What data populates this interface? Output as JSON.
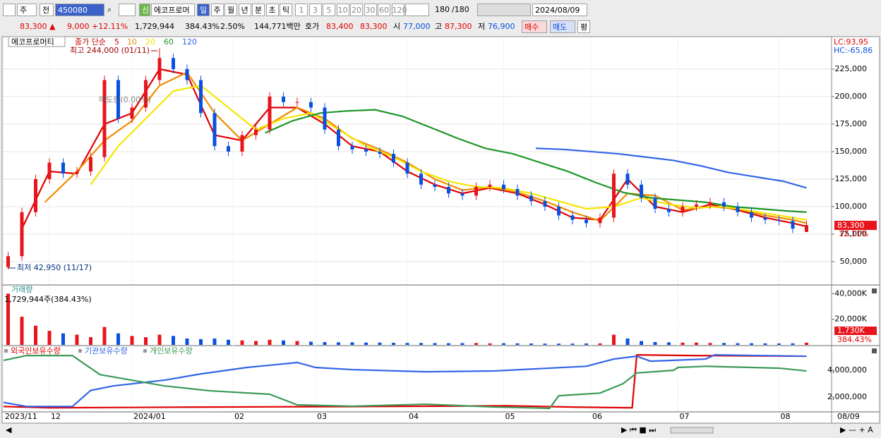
{
  "toolbar": {
    "market": "주",
    "scope": "전",
    "code": "450080",
    "badge": "신",
    "name": "에코프로머",
    "intervals": [
      "일",
      "주",
      "월",
      "년",
      "분",
      "초",
      "틱"
    ],
    "minutes": [
      "1",
      "3",
      "5",
      "10",
      "20",
      "30",
      "60",
      "120"
    ],
    "count": "180",
    "total": "/180",
    "date": "2024/08/09"
  },
  "quote": {
    "price": "83,300 ▲",
    "change": "9,000",
    "rate": "+12.11%",
    "volume": "1,729,944",
    "volume_rate": "384.43%",
    "turnover": "2.50%",
    "amount": "144,771백만",
    "ask_label": "호가",
    "ask": "83,400",
    "bid": "83,300",
    "open_label": "시",
    "open": "77,000",
    "high_label": "고",
    "high": "87,300",
    "low_label": "저",
    "low": "76,900",
    "buy": "매수",
    "sell": "매도",
    "avg": "평"
  },
  "chart_data": [
    {
      "type": "candlestick",
      "title": "에코프로머티",
      "indicator": "종가 단순",
      "up_color": "#e8141c",
      "down_color": "#0a50e0",
      "grid": true,
      "annotations": {
        "high": "최고 244,000 (01/11)",
        "low": "최저 42,950 (11/17)",
        "overlay": "매도량(0.00%)",
        "lc": "LC:93,95",
        "hc": "HC:-65,86",
        "last_rate": "12.11%"
      },
      "last_price_label": "83,300",
      "xlim": [
        0,
        180
      ],
      "ylim": [
        29500,
        252500
      ],
      "yticks": [
        {
          "value": 50000,
          "label": "50,000"
        },
        {
          "value": 75000,
          "label": "75,000"
        },
        {
          "value": 100000,
          "label": "100,000"
        },
        {
          "value": 125000,
          "label": "125,000"
        },
        {
          "value": 150000,
          "label": "150,000"
        },
        {
          "value": 175000,
          "label": "175,000"
        },
        {
          "value": 200000,
          "label": "200,000"
        },
        {
          "value": 225000,
          "label": "225,000"
        }
      ],
      "x": [
        1,
        4,
        7,
        10,
        13,
        16,
        19,
        22,
        25,
        28,
        31,
        34,
        37,
        40,
        43,
        46,
        49,
        52,
        55,
        58,
        61,
        64,
        67,
        70,
        73,
        76,
        79,
        82,
        85,
        88,
        91,
        94,
        97,
        100,
        103,
        106,
        109,
        112,
        115,
        118,
        121,
        124,
        127,
        130,
        133,
        136,
        139,
        142,
        145,
        148,
        151,
        154,
        157,
        160,
        163,
        166,
        169,
        172,
        175
      ],
      "open": [
        45000,
        55000,
        95000,
        125000,
        140000,
        130000,
        132000,
        145000,
        215000,
        180000,
        190000,
        215000,
        235000,
        225000,
        215000,
        185000,
        155000,
        150000,
        165000,
        170000,
        200000,
        195000,
        195000,
        190000,
        170000,
        155000,
        152000,
        150000,
        148000,
        140000,
        130000,
        120000,
        118000,
        112000,
        110000,
        118000,
        120000,
        116000,
        110000,
        105000,
        100000,
        92000,
        88000,
        85000,
        90000,
        130000,
        120000,
        108000,
        98000,
        95000,
        100000,
        102000,
        104000,
        100000,
        95000,
        90000,
        88000,
        87000,
        77000
      ],
      "high": [
        59000,
        99000,
        129000,
        144000,
        144000,
        136000,
        149000,
        219000,
        219000,
        194000,
        219000,
        244000,
        239000,
        229000,
        219000,
        189000,
        159000,
        169000,
        174000,
        204000,
        204000,
        199000,
        199000,
        194000,
        174000,
        159000,
        156000,
        154000,
        152000,
        144000,
        134000,
        124000,
        122000,
        116000,
        122000,
        124000,
        124000,
        120000,
        114000,
        109000,
        104000,
        96000,
        92000,
        94000,
        134000,
        134000,
        124000,
        112000,
        102000,
        104000,
        106000,
        108000,
        108000,
        104000,
        99000,
        94000,
        92000,
        91000,
        87300
      ],
      "low": [
        42950,
        51000,
        91000,
        121000,
        126000,
        126000,
        128000,
        141000,
        176000,
        176000,
        186000,
        211000,
        221000,
        211000,
        181000,
        151000,
        146000,
        146000,
        161000,
        166000,
        191000,
        191000,
        186000,
        166000,
        151000,
        148000,
        146000,
        144000,
        136000,
        126000,
        116000,
        114000,
        108000,
        106000,
        106000,
        114000,
        112000,
        106000,
        101000,
        96000,
        88000,
        84000,
        81000,
        81000,
        86000,
        116000,
        104000,
        94000,
        91000,
        91000,
        96000,
        98000,
        96000,
        91000,
        86000,
        84000,
        83000,
        76000,
        76900
      ],
      "close": [
        55000,
        95000,
        125000,
        140000,
        130000,
        132000,
        145000,
        215000,
        180000,
        190000,
        215000,
        235000,
        225000,
        215000,
        185000,
        155000,
        150000,
        165000,
        170000,
        200000,
        195000,
        195000,
        190000,
        170000,
        155000,
        152000,
        150000,
        148000,
        140000,
        130000,
        120000,
        118000,
        112000,
        110000,
        118000,
        120000,
        116000,
        110000,
        105000,
        100000,
        92000,
        88000,
        85000,
        90000,
        130000,
        120000,
        108000,
        98000,
        95000,
        100000,
        102000,
        104000,
        100000,
        95000,
        90000,
        88000,
        87000,
        80000,
        83300
      ],
      "series": [
        {
          "name": "5",
          "color": "#e00000",
          "x": [
            4,
            10,
            16,
            22,
            28,
            34,
            40,
            46,
            52,
            58,
            64,
            70,
            76,
            82,
            88,
            94,
            100,
            106,
            112,
            118,
            124,
            130,
            136,
            142,
            148,
            154,
            160,
            166,
            172,
            175
          ],
          "values": [
            80000,
            132000,
            130000,
            175000,
            185000,
            225000,
            220000,
            165000,
            160000,
            190000,
            190000,
            175000,
            155000,
            150000,
            132000,
            120000,
            112000,
            117000,
            112000,
            102000,
            90000,
            88000,
            125000,
            100000,
            95000,
            102000,
            97000,
            90000,
            85000,
            82000
          ]
        },
        {
          "name": "10",
          "color": "#f08c00",
          "x": [
            9,
            16,
            22,
            28,
            34,
            40,
            46,
            52,
            58,
            64,
            70,
            76,
            82,
            88,
            94,
            100,
            106,
            112,
            118,
            124,
            130,
            136,
            142,
            148,
            154,
            160,
            166,
            172,
            175
          ],
          "values": [
            104000,
            132000,
            160000,
            178000,
            210000,
            222000,
            185000,
            160000,
            175000,
            190000,
            180000,
            162000,
            152000,
            140000,
            125000,
            115000,
            118000,
            113000,
            105000,
            95000,
            87000,
            112000,
            110000,
            97000,
            100000,
            98000,
            92000,
            88000,
            85000
          ]
        },
        {
          "name": "20",
          "color": "#f5e600",
          "x": [
            19,
            25,
            31,
            37,
            43,
            49,
            55,
            61,
            67,
            73,
            79,
            85,
            91,
            97,
            103,
            109,
            115,
            121,
            127,
            133,
            139,
            145,
            151,
            157,
            163,
            169,
            175
          ],
          "values": [
            120000,
            155000,
            180000,
            205000,
            210000,
            190000,
            170000,
            180000,
            185000,
            170000,
            155000,
            145000,
            132000,
            123000,
            118000,
            117000,
            112000,
            105000,
            98000,
            100000,
            108000,
            102000,
            99000,
            100000,
            96000,
            92000,
            88000
          ]
        },
        {
          "name": "60",
          "color": "#1e9628",
          "x": [
            57,
            63,
            69,
            75,
            81,
            87,
            93,
            99,
            105,
            111,
            117,
            123,
            129,
            135,
            141,
            147,
            153,
            159,
            165,
            171,
            175
          ],
          "values": [
            167000,
            178000,
            185000,
            187000,
            188000,
            182000,
            172000,
            162000,
            153000,
            148000,
            140000,
            132000,
            122000,
            113000,
            108000,
            106000,
            104000,
            100000,
            98000,
            96000,
            95000
          ]
        },
        {
          "name": "120",
          "color": "#3264e6",
          "x": [
            116,
            122,
            128,
            134,
            140,
            146,
            152,
            158,
            164,
            170,
            175
          ],
          "values": [
            153000,
            152000,
            150000,
            148000,
            145000,
            142000,
            137000,
            131000,
            127000,
            123000,
            117000
          ]
        }
      ]
    },
    {
      "type": "bar",
      "title": "거래량",
      "subtitle": "1,729,944주(384.43%)",
      "last_label": "1,730K",
      "last_rate": "384.43%",
      "ylim": [
        0,
        46300
      ],
      "yticks": [
        {
          "value": 20000,
          "label": "20,000K"
        },
        {
          "value": 40000,
          "label": "40,000K"
        }
      ],
      "values": [
        40000,
        22000,
        15000,
        11000,
        9000,
        8000,
        6000,
        14000,
        9000,
        7000,
        6000,
        8000,
        7000,
        5000,
        4500,
        5000,
        4000,
        3500,
        3000,
        4000,
        3500,
        3000,
        2500,
        2200,
        2000,
        2000,
        1800,
        1800,
        1600,
        1500,
        1500,
        1400,
        1300,
        1400,
        1500,
        1200,
        1300,
        1200,
        1100,
        1000,
        1000,
        1000,
        1100,
        1200,
        8000,
        5000,
        3000,
        2200,
        2000,
        1800,
        1800,
        1500,
        1500,
        1300,
        1300,
        1200,
        1100,
        1200,
        1730
      ]
    },
    {
      "type": "line",
      "grid": true,
      "xlim": [
        0,
        180
      ],
      "ylim": [
        947000,
        5790000
      ],
      "yticks": [
        {
          "value": 2000000,
          "label": "2,000,000"
        },
        {
          "value": 4000000,
          "label": "4,000,000"
        }
      ],
      "xticks": [
        {
          "value": 0,
          "label": "2023/11"
        },
        {
          "value": 10,
          "label": "12"
        },
        {
          "value": 28,
          "label": "2024/01"
        },
        {
          "value": 50,
          "label": "02"
        },
        {
          "value": 68,
          "label": "03"
        },
        {
          "value": 88,
          "label": "04"
        },
        {
          "value": 109,
          "label": "05"
        },
        {
          "value": 128,
          "label": "06"
        },
        {
          "value": 147,
          "label": "07"
        },
        {
          "value": 169,
          "label": "08"
        }
      ],
      "x_end_label": "08/09",
      "series": [
        {
          "name": "외국인보유수량",
          "color": "#e00000",
          "x": [
            0,
            10,
            40,
            80,
            110,
            125,
            137,
            138,
            150,
            175
          ],
          "values": [
            1300000,
            1200000,
            1250000,
            1300000,
            1350000,
            1250000,
            1200000,
            5150000,
            5100000,
            5050000
          ]
        },
        {
          "name": "기관보유수량",
          "color": "#3264e6",
          "x": [
            0,
            5,
            15,
            19,
            24,
            35,
            43,
            53,
            64,
            68,
            76,
            92,
            107,
            127,
            133,
            138,
            141,
            153,
            155,
            175
          ],
          "values": [
            1600000,
            1300000,
            1300000,
            2500000,
            2840000,
            3260000,
            3730000,
            4210000,
            4580000,
            4210000,
            4050000,
            3890000,
            3950000,
            4300000,
            4840000,
            5050000,
            4680000,
            4840000,
            5150000,
            5050000
          ]
        },
        {
          "name": "개인보유수량",
          "color": "#3c9a5a",
          "x": [
            0,
            5,
            15,
            21,
            35,
            45,
            58,
            64,
            76,
            92,
            107,
            119,
            121,
            130,
            135,
            138,
            146,
            147,
            153,
            169,
            175
          ],
          "values": [
            4740000,
            5100000,
            5100000,
            3680000,
            2840000,
            2470000,
            2210000,
            1420000,
            1320000,
            1470000,
            1260000,
            1160000,
            2100000,
            2300000,
            3000000,
            3800000,
            4000000,
            4210000,
            4300000,
            4160000,
            3950000
          ]
        }
      ]
    }
  ]
}
